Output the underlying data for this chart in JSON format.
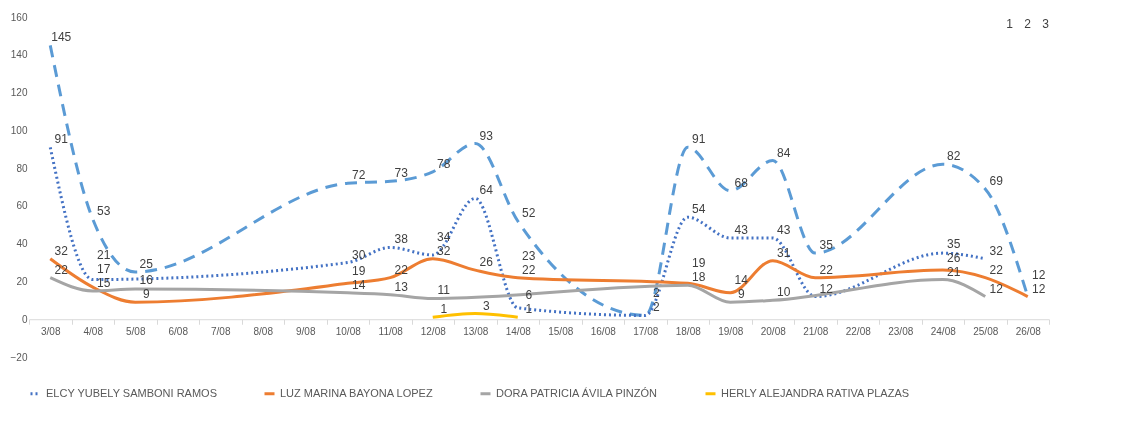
{
  "chart_data": {
    "type": "line",
    "categories": [
      "3/08",
      "4/08",
      "5/08",
      "6/08",
      "7/08",
      "8/08",
      "9/08",
      "10/08",
      "11/08",
      "12/08",
      "13/08",
      "14/08",
      "15/08",
      "16/08",
      "17/08",
      "18/08",
      "19/08",
      "20/08",
      "21/08",
      "22/08",
      "23/08",
      "24/08",
      "25/08",
      "26/08"
    ],
    "series": [
      {
        "color": "#5b9bd5",
        "line_style": "dashed",
        "values": [
          145,
          53,
          25,
          null,
          null,
          null,
          null,
          72,
          73,
          78,
          93,
          52,
          null,
          null,
          2,
          91,
          68,
          84,
          35,
          null,
          null,
          82,
          69,
          12
        ]
      },
      {
        "name": "ELCY YUBELY SAMBONI RAMOS",
        "color": "#4472c4",
        "line_style": "dotted",
        "values": [
          91,
          21,
          null,
          null,
          null,
          null,
          null,
          30,
          38,
          34,
          64,
          6,
          null,
          null,
          2,
          54,
          43,
          43,
          12,
          null,
          null,
          35,
          32,
          null
        ]
      },
      {
        "name": "LUZ MARINA BAYONA LOPEZ",
        "color": "#ed7d31",
        "line_style": "solid",
        "values": [
          32,
          17,
          9,
          null,
          null,
          null,
          null,
          19,
          22,
          32,
          26,
          22,
          null,
          null,
          null,
          19,
          14,
          31,
          22,
          null,
          null,
          26,
          22,
          12
        ]
      },
      {
        "name": "DORA PATRICIA ÁVILA PINZÓN",
        "color": "#a5a5a5",
        "line_style": "solid",
        "values": [
          22,
          15,
          16,
          null,
          null,
          null,
          null,
          14,
          13,
          11,
          null,
          null,
          null,
          null,
          null,
          18,
          9,
          10,
          null,
          null,
          null,
          21,
          12,
          null
        ]
      },
      {
        "name": "HERLY ALEJANDRA RATIVA PLAZAS",
        "color": "#ffc000",
        "line_style": "solid",
        "values": [
          null,
          null,
          null,
          null,
          null,
          null,
          null,
          null,
          null,
          1,
          3,
          1,
          null,
          null,
          null,
          null,
          null,
          null,
          null,
          null,
          null,
          null,
          null,
          null
        ]
      }
    ],
    "ylim": [
      -20,
      160
    ],
    "yticks": [
      -20,
      0,
      20,
      40,
      60,
      80,
      100,
      120,
      140,
      160
    ],
    "data_labels": true,
    "legend": "bottom",
    "marker": "none",
    "annotations": [
      {
        "text": "23",
        "x": "14/08",
        "y": 23
      },
      "1",
      "2",
      "3"
    ]
  }
}
